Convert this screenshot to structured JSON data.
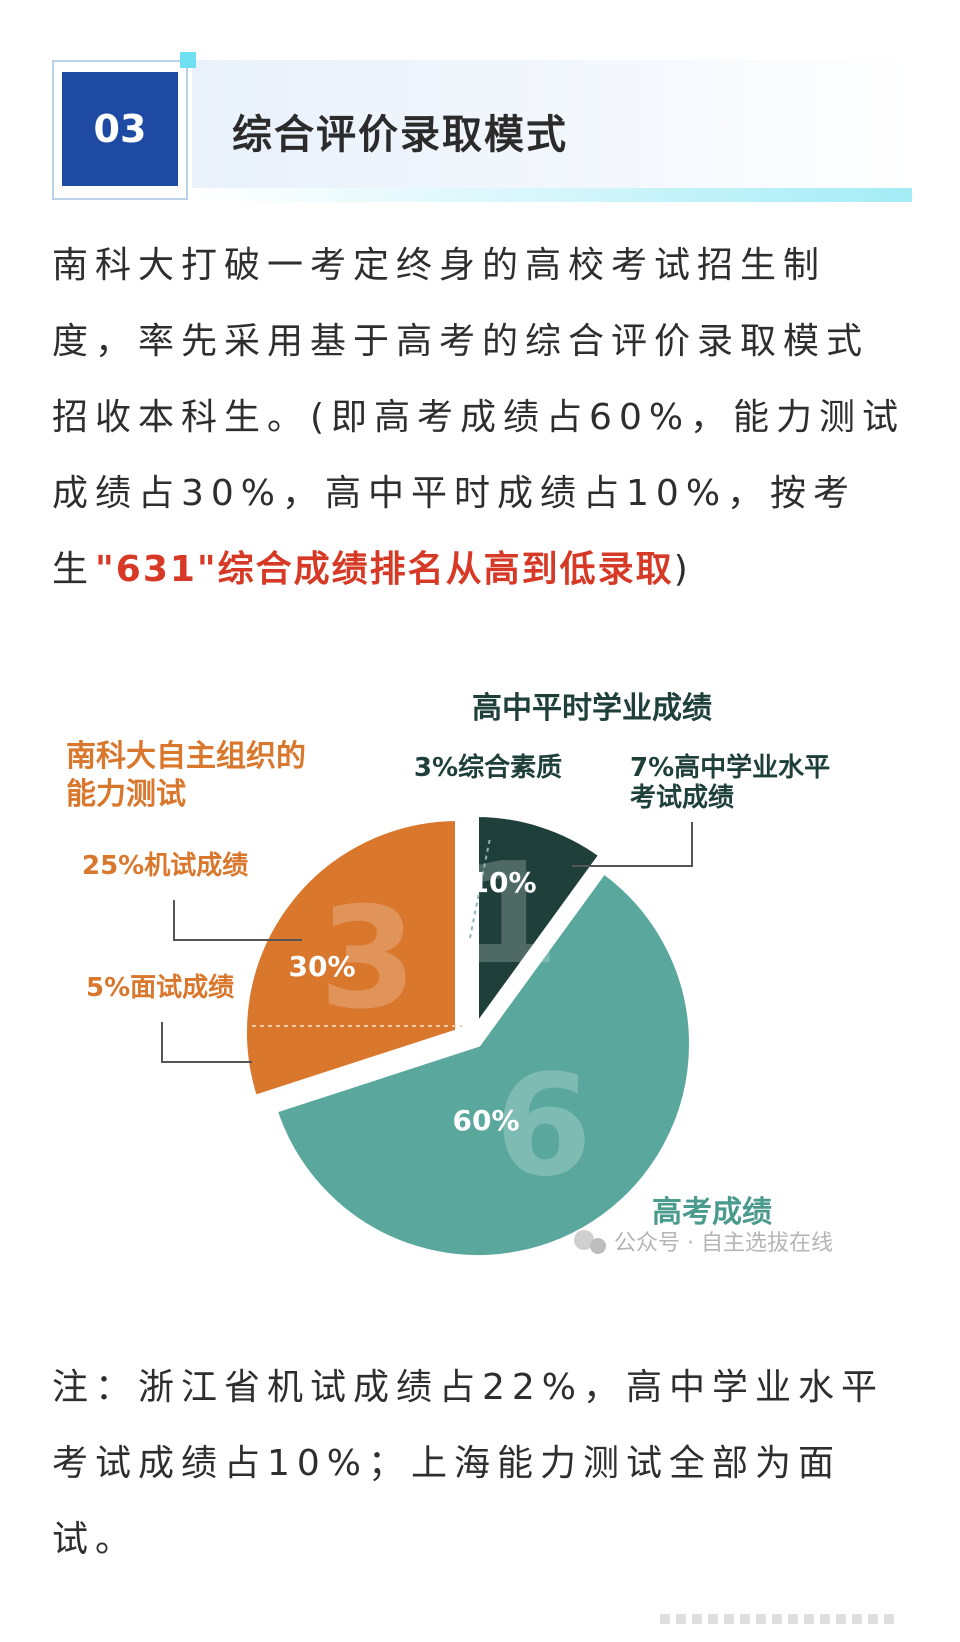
{
  "section": {
    "number": "03",
    "title": "综合评价录取模式"
  },
  "paragraph": {
    "line1": "南科大打破一考定终身的高校考试招生制",
    "line2": "度，率先采用基于高考的综合评价录取模式",
    "line3": "招收本科生。(即高考成绩占60%，能力测试",
    "line4": "成绩占30%，高中平时成绩占10%，按考",
    "line5_pre": "生",
    "line5_highlight": "\"631\"综合成绩排名从高到低录取",
    "line5_post": ")"
  },
  "colors": {
    "accent_red": "#d63a26",
    "orange": "#d9772c",
    "teal": "#5aa89d",
    "dark_teal": "#1e3f3a",
    "title_green": "#1e3f3a",
    "teal_label": "#4a9a8e"
  },
  "chart_data": {
    "type": "pie",
    "slices": [
      {
        "label": "高中平时学业成绩",
        "value": 10,
        "value_label": "10%",
        "big_digit": "1",
        "color": "#1e3f3a"
      },
      {
        "label": "高考成绩",
        "value": 60,
        "value_label": "60%",
        "big_digit": "6",
        "color": "#5aa89d"
      },
      {
        "label": "南科大自主组织的能力测试",
        "value": 30,
        "value_label": "30%",
        "big_digit": "3",
        "color": "#d9772c"
      }
    ],
    "annotations": {
      "top_title": "高中平时学业成绩",
      "quality": "3%综合素质",
      "academic_line1": "7%高中学业水平",
      "academic_line2": "考试成绩",
      "ability_line1": "南科大自主组织的",
      "ability_line2": "能力测试",
      "computer_test": "25%机试成绩",
      "interview": "5%面试成绩",
      "gaokao": "高考成绩"
    },
    "watermark": "公众号 · 自主选拔在线"
  },
  "note": {
    "line1": "注：浙江省机试成绩占22%，高中学业水平",
    "line2": "考试成绩占10%；上海能力测试全部为面",
    "line3": "试。"
  }
}
